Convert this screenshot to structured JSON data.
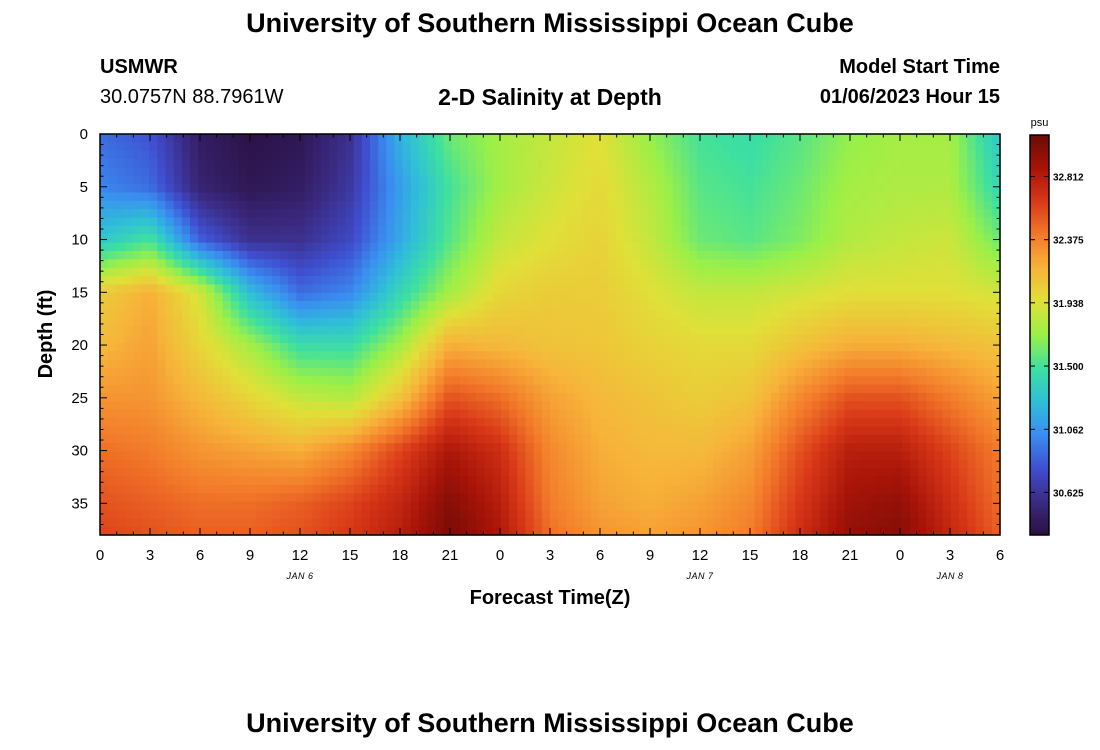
{
  "page": {
    "title": "University of Southern Mississippi Ocean Cube",
    "footer_title": "University of Southern Mississippi Ocean Cube",
    "station": "USMWR",
    "location": "30.0757N  88.7961W",
    "subtitle": "2-D Salinity at Depth",
    "model_label": "Model Start Time",
    "model_time": "01/06/2023 Hour 15"
  },
  "chart_data": {
    "type": "heatmap",
    "title": "2-D Salinity at Depth",
    "xlabel": "Forecast Time(Z)",
    "ylabel": "Depth (ft)",
    "x_tick_labels": [
      "0",
      "3",
      "6",
      "9",
      "12",
      "15",
      "18",
      "21",
      "0",
      "3",
      "6",
      "9",
      "12",
      "15",
      "18",
      "21",
      "0",
      "3",
      "6"
    ],
    "x_hours_range": [
      0,
      54
    ],
    "y_ticks": [
      0,
      5,
      10,
      15,
      20,
      25,
      30,
      35
    ],
    "ylim": [
      0,
      38
    ],
    "y_inverted": true,
    "day_labels": [
      {
        "text": "JAN 6",
        "hour": 12
      },
      {
        "text": "JAN 7",
        "hour": 36
      },
      {
        "text": "JAN 8",
        "hour": 51
      }
    ],
    "colorbar": {
      "unit": "psu",
      "ticks": [
        "32.812",
        "32.375",
        "31.938",
        "31.500",
        "31.062",
        "30.625"
      ],
      "tick_values": [
        32.812,
        32.375,
        31.938,
        31.5,
        31.062,
        30.625
      ],
      "range": [
        30.33,
        33.1
      ],
      "colormap": [
        "#2a1040",
        "#3b2a82",
        "#3f4fd0",
        "#3a8df0",
        "#2fbfd8",
        "#3ee0a0",
        "#9af048",
        "#e0e038",
        "#f7b43a",
        "#f37a2a",
        "#d93818",
        "#a81408",
        "#6a0a06"
      ]
    },
    "x_hours": [
      0,
      3,
      6,
      9,
      12,
      15,
      18,
      21,
      24,
      27,
      30,
      33,
      36,
      39,
      42,
      45,
      48,
      51,
      54
    ],
    "depths": [
      0,
      5,
      10,
      15,
      20,
      25,
      30,
      35,
      38
    ],
    "values": [
      [
        30.9,
        30.8,
        30.45,
        30.35,
        30.4,
        30.6,
        31.2,
        31.6,
        31.75,
        31.85,
        31.95,
        31.7,
        31.5,
        31.45,
        31.55,
        31.7,
        31.75,
        31.75,
        31.3
      ],
      [
        31.0,
        30.9,
        30.5,
        30.4,
        30.45,
        30.65,
        31.1,
        31.5,
        31.75,
        31.88,
        31.98,
        31.8,
        31.55,
        31.5,
        31.6,
        31.75,
        31.78,
        31.78,
        31.4
      ],
      [
        31.3,
        31.5,
        30.85,
        30.6,
        30.6,
        30.75,
        31.15,
        31.55,
        31.85,
        31.95,
        32.02,
        31.85,
        31.6,
        31.55,
        31.65,
        31.8,
        31.85,
        31.88,
        31.6
      ],
      [
        32.05,
        32.2,
        31.9,
        31.25,
        30.9,
        31.0,
        31.4,
        31.75,
        32.0,
        32.05,
        32.05,
        31.95,
        31.85,
        31.85,
        31.9,
        31.95,
        31.95,
        31.95,
        31.9
      ],
      [
        32.15,
        32.25,
        32.0,
        31.75,
        31.45,
        31.45,
        31.75,
        32.2,
        32.15,
        32.1,
        32.08,
        32.02,
        31.98,
        31.98,
        32.1,
        32.2,
        32.2,
        32.15,
        32.1
      ],
      [
        32.3,
        32.3,
        32.15,
        32.0,
        31.85,
        31.8,
        32.1,
        32.55,
        32.45,
        32.25,
        32.15,
        32.1,
        32.05,
        32.1,
        32.35,
        32.55,
        32.55,
        32.4,
        32.25
      ],
      [
        32.45,
        32.4,
        32.3,
        32.25,
        32.2,
        32.35,
        32.6,
        32.85,
        32.7,
        32.35,
        32.2,
        32.15,
        32.15,
        32.25,
        32.55,
        32.8,
        32.8,
        32.6,
        32.4
      ],
      [
        32.55,
        32.5,
        32.45,
        32.45,
        32.5,
        32.6,
        32.75,
        33.0,
        32.8,
        32.4,
        32.25,
        32.2,
        32.25,
        32.35,
        32.65,
        32.9,
        32.95,
        32.7,
        32.45
      ],
      [
        32.6,
        32.55,
        32.5,
        32.5,
        32.55,
        32.65,
        32.8,
        33.05,
        32.85,
        32.45,
        32.3,
        32.25,
        32.3,
        32.4,
        32.7,
        32.95,
        33.0,
        32.75,
        32.5
      ]
    ]
  }
}
